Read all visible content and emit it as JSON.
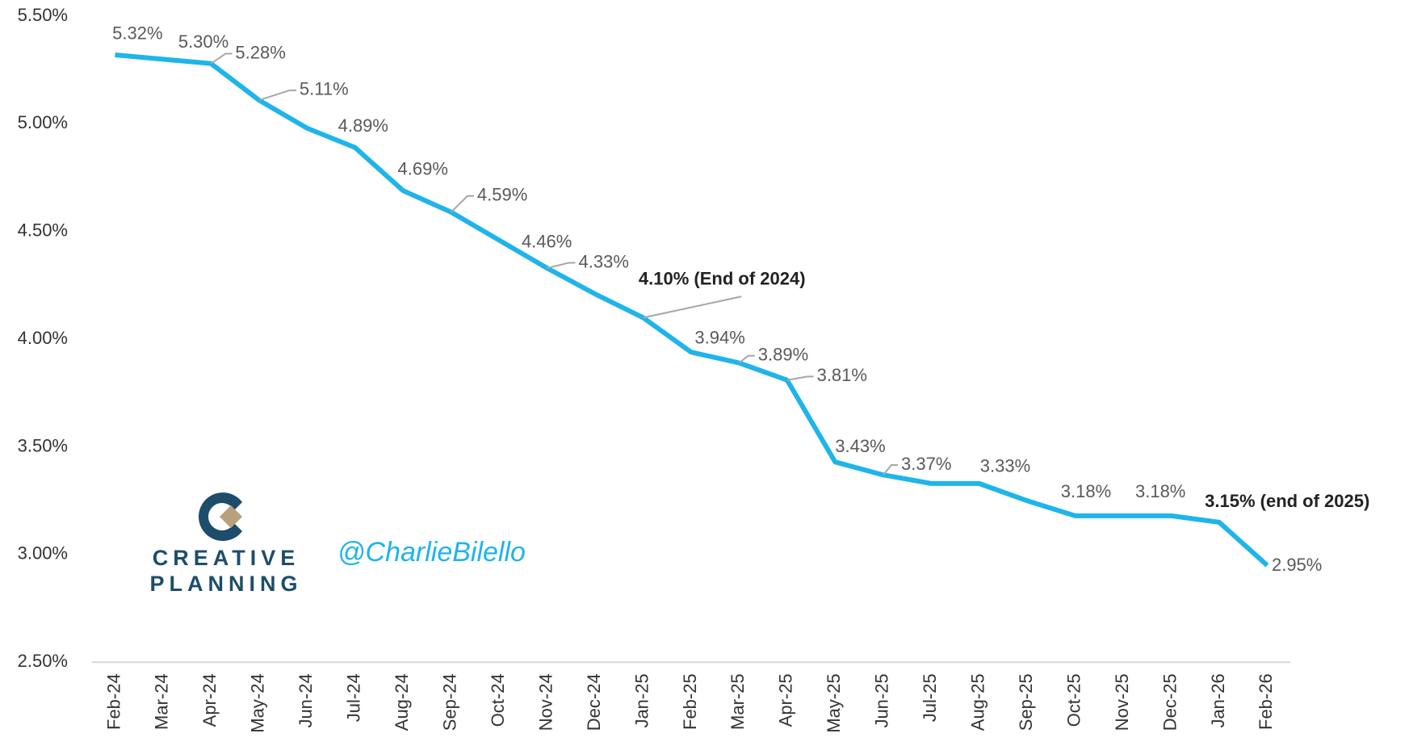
{
  "chart_data": {
    "type": "line",
    "categories": [
      "Feb-24",
      "Mar-24",
      "Apr-24",
      "May-24",
      "Jun-24",
      "Jul-24",
      "Aug-24",
      "Sep-24",
      "Oct-24",
      "Nov-24",
      "Dec-24",
      "Jan-25",
      "Feb-25",
      "Mar-25",
      "Apr-25",
      "May-25",
      "Jun-25",
      "Jul-25",
      "Aug-25",
      "Sep-25",
      "Oct-25",
      "Nov-25",
      "Dec-25",
      "Jan-26",
      "Feb-26"
    ],
    "series": [
      {
        "color": "#1fb4ea",
        "values": [
          5.32,
          5.3,
          5.28,
          5.11,
          4.98,
          4.89,
          4.69,
          4.59,
          4.46,
          4.33,
          4.21,
          4.1,
          3.94,
          3.89,
          3.81,
          3.43,
          3.37,
          3.33,
          3.33,
          3.25,
          3.18,
          3.18,
          3.18,
          3.15,
          2.95
        ],
        "value_labels": [
          "5.32%",
          "5.30%",
          "5.28%",
          "5.11%",
          null,
          "4.89%",
          "4.69%",
          "4.59%",
          "4.46%",
          "4.33%",
          null,
          "4.10% (End of 2024)",
          "3.94%",
          "3.89%",
          "3.81%",
          "3.43%",
          "3.37%",
          null,
          "3.33%",
          null,
          "3.18%",
          null,
          "3.18%",
          "3.15% (end of 2025)",
          "2.95%"
        ]
      }
    ],
    "ylim": [
      2.5,
      5.5
    ],
    "yticks": [
      {
        "value": 2.5,
        "label": "2.50%"
      },
      {
        "value": 3.0,
        "label": "3.00%"
      },
      {
        "value": 3.5,
        "label": "3.50%"
      },
      {
        "value": 4.0,
        "label": "4.00%"
      },
      {
        "value": 4.5,
        "label": "4.50%"
      },
      {
        "value": 5.0,
        "label": "5.00%"
      },
      {
        "value": 5.5,
        "label": "5.50%"
      }
    ],
    "grid": false,
    "watermark": {
      "brand_line1": "CREATIVE",
      "brand_line2": "PLANNING",
      "handle": "@CharlieBilello"
    }
  }
}
